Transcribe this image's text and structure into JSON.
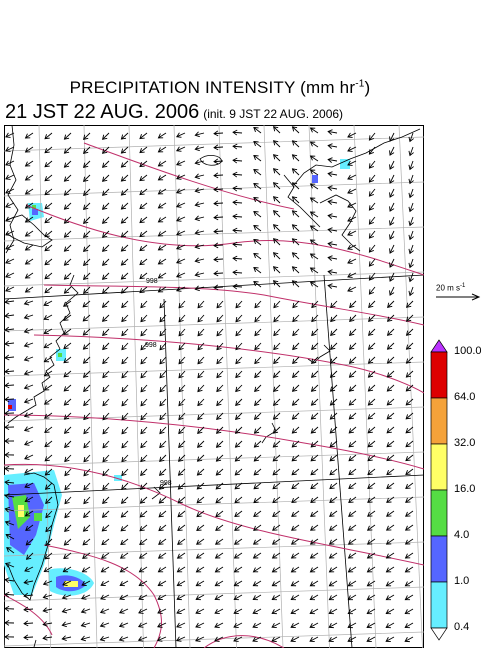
{
  "header": {
    "title_main": "PRECIPITATION INTENSITY (mm hr",
    "title_exp": "-1",
    "title_end": ")",
    "valid_time": "21 JST 22 AUG. 2006",
    "init_time": "(init. 9 JST 22 AUG. 2006)"
  },
  "wind_scale": {
    "label_main": "20 m s",
    "label_exp": "-1"
  },
  "map": {
    "pressure_contour_labels": [
      "998",
      "998",
      "998"
    ],
    "coast_color": "#000000",
    "contour_color": "#c0306a",
    "grid_color": "#b0b0b0"
  },
  "legend": {
    "levels": [
      "100.0",
      "64.0",
      "32.0",
      "16.0",
      "4.0",
      "1.0",
      "0.4"
    ],
    "colors": [
      "#dd0000",
      "#f4a23a",
      "#ffff66",
      "#55dd44",
      "#5566ff",
      "#66eeff"
    ],
    "top_color": "#bb33ff",
    "bottom_color": "#ffffff"
  }
}
